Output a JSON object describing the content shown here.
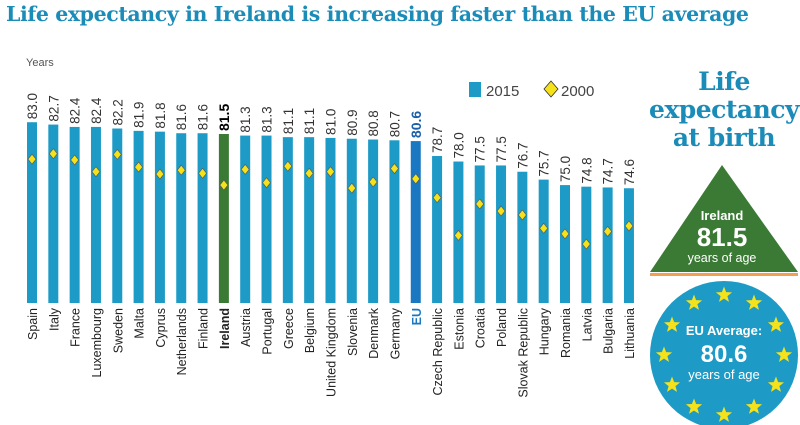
{
  "title": "Life expectancy in Ireland is increasing faster than the EU average",
  "side_panel": {
    "title": "Life expectancy at birth",
    "ireland_label": "Ireland",
    "ireland_value": "81.5",
    "ireland_unit": "years of age",
    "eu_label": "EU Average:",
    "eu_value": "80.6",
    "eu_unit": "years of age"
  },
  "colors": {
    "bar": "#1d9bc6",
    "ireland": "#3a7a34",
    "eu": "#1a78c2",
    "diamond": "#f5e21b",
    "title": "#1b8bb8",
    "orange": "#f0a050"
  },
  "chart_data": {
    "type": "bar",
    "ylabel": "Years",
    "ylim": [
      60,
      84
    ],
    "legend_position": "top-right",
    "categories": [
      "Spain",
      "Italy",
      "France",
      "Luxembourg",
      "Sweden",
      "Malta",
      "Cyprus",
      "Netherlands",
      "Finland",
      "Ireland",
      "Austria",
      "Portugal",
      "Greece",
      "Belgium",
      "United Kingdom",
      "Slovenia",
      "Denmark",
      "Germany",
      "EU",
      "Czech Republic",
      "Estonia",
      "Croatia",
      "Poland",
      "Slovak Republic",
      "Hungary",
      "Romania",
      "Latvia",
      "Bulgaria",
      "Lithuania"
    ],
    "series": [
      {
        "name": "2015",
        "type": "bar",
        "values": [
          83.0,
          82.7,
          82.4,
          82.4,
          82.2,
          81.9,
          81.8,
          81.6,
          81.6,
          81.5,
          81.3,
          81.3,
          81.1,
          81.1,
          81.0,
          80.9,
          80.8,
          80.7,
          80.6,
          78.7,
          78.0,
          77.5,
          77.5,
          76.7,
          75.7,
          75.0,
          74.8,
          74.7,
          74.6
        ],
        "labels": [
          "83.0",
          "82.7",
          "82.4",
          "82.4",
          "82.2",
          "81.9",
          "81.8",
          "81.6",
          "81.6",
          "81.5",
          "81.3",
          "81.3",
          "81.1",
          "81.1",
          "81.0",
          "80.9",
          "80.8",
          "80.7",
          "80.6",
          "78.7",
          "78.0",
          "77.5",
          "77.5",
          "76.7",
          "75.7",
          "75.0",
          "74.8",
          "74.7",
          "74.6"
        ]
      },
      {
        "name": "2000",
        "type": "diamond",
        "values": [
          78.3,
          79.0,
          78.2,
          76.7,
          78.9,
          77.3,
          76.4,
          76.9,
          76.5,
          75.0,
          77.0,
          75.3,
          77.4,
          76.5,
          76.7,
          74.6,
          75.4,
          77.1,
          75.8,
          73.4,
          68.6,
          72.6,
          71.7,
          71.2,
          69.5,
          68.8,
          67.5,
          69.1,
          69.8
        ]
      }
    ]
  }
}
